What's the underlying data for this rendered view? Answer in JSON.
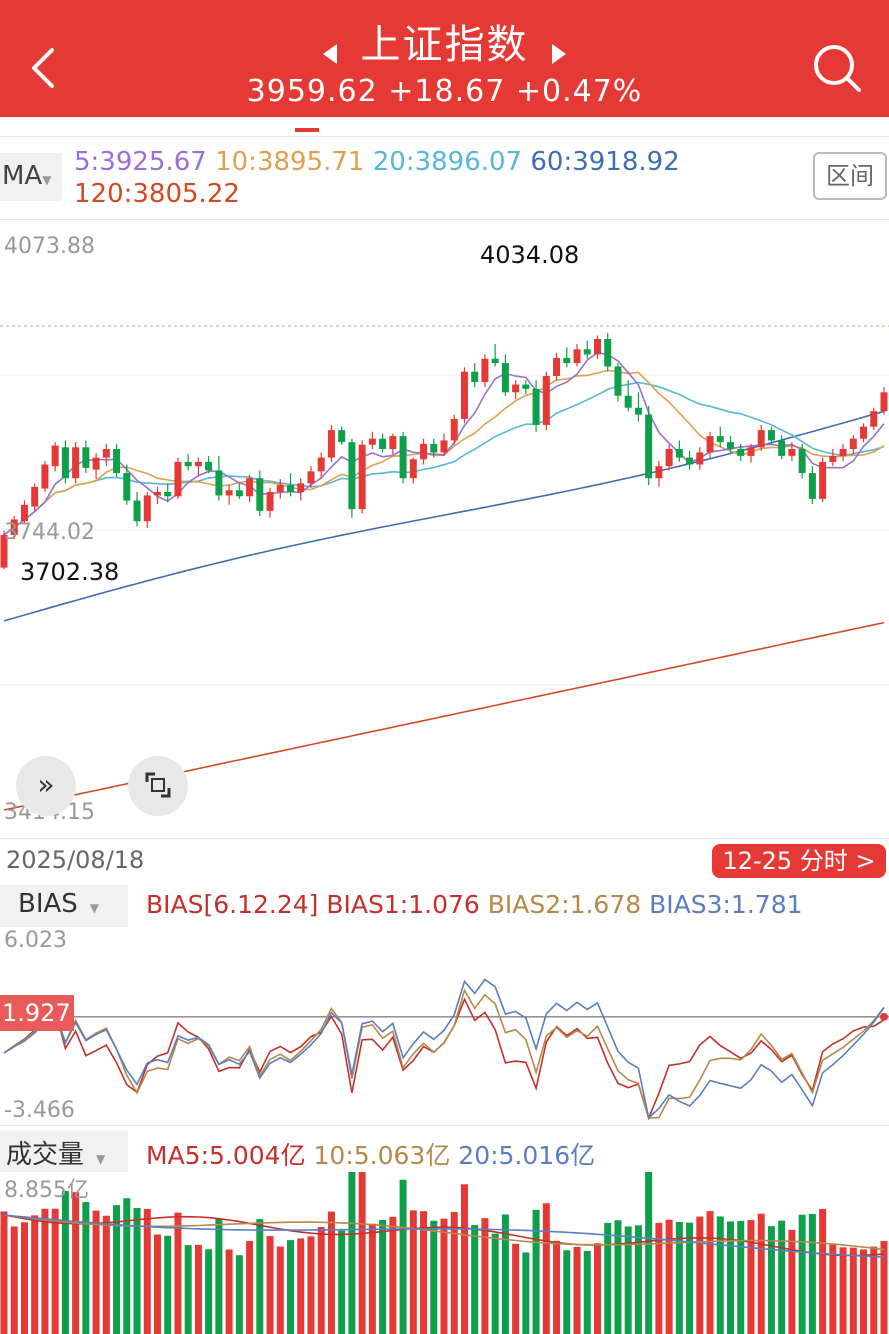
{
  "header": {
    "title": "上证指数",
    "price": "3959.62",
    "change": "+18.67",
    "change_pct": "+0.47%"
  },
  "ma_bar": {
    "selector_label": "MA",
    "ma5": "5:3925.67",
    "ma10": "10:3895.71",
    "ma20": "20:3896.07",
    "ma60": "60:3918.92",
    "ma120": "120:3805.22",
    "range_label": "区间"
  },
  "main_chart": {
    "y_high": "4073.88",
    "y_mid": "3744.02",
    "y_low": "3414.15",
    "max_label": "4034.08",
    "min_label": "3702.38",
    "expand_icon": "double-chevron-right-icon",
    "fullscreen_icon": "square-corner-icon"
  },
  "date_bar": {
    "date": "2025/08/18",
    "intraday_link": "12-25 分时 >"
  },
  "bias": {
    "selector_label": "BIAS",
    "params": "BIAS[6.12.24]",
    "bias1": "BIAS1:1.076",
    "bias2": "BIAS2:1.678",
    "bias3": "BIAS3:1.781",
    "y_top": "6.023",
    "y_bottom": "-3.466",
    "current_tag": "1.927"
  },
  "volume": {
    "selector_label": "成交量",
    "ma5": "MA5:5.004亿",
    "ma10": "10:5.063亿",
    "ma20": "20:5.016亿",
    "y_top": "8.855亿"
  },
  "colors": {
    "up": "#e53935",
    "down": "#0e9f4a",
    "ma5": "#9b6fd6",
    "ma10": "#e0a050",
    "ma20": "#55b8d6",
    "ma60": "#3d6fb2",
    "ma120": "#d24a22",
    "bias1": "#c4302b",
    "bias2": "#b5894a",
    "bias3": "#5a7fbf"
  },
  "chart_data": {
    "type": "candlestick",
    "title": "上证指数",
    "y_ticks": [
      4073.88,
      3744.02,
      3414.15
    ],
    "ylim": [
      3414.15,
      4073.88
    ],
    "max": 4034.08,
    "min": 3702.38,
    "candles_ohlc": [
      [
        3702,
        3745,
        3700,
        3740
      ],
      [
        3740,
        3762,
        3735,
        3758
      ],
      [
        3756,
        3780,
        3752,
        3775
      ],
      [
        3773,
        3800,
        3768,
        3796
      ],
      [
        3794,
        3826,
        3790,
        3822
      ],
      [
        3820,
        3848,
        3814,
        3844
      ],
      [
        3842,
        3850,
        3800,
        3806
      ],
      [
        3806,
        3848,
        3800,
        3842
      ],
      [
        3842,
        3850,
        3812,
        3818
      ],
      [
        3816,
        3835,
        3805,
        3830
      ],
      [
        3830,
        3846,
        3820,
        3840
      ],
      [
        3840,
        3846,
        3808,
        3812
      ],
      [
        3812,
        3822,
        3775,
        3780
      ],
      [
        3780,
        3790,
        3750,
        3756
      ],
      [
        3756,
        3790,
        3748,
        3786
      ],
      [
        3786,
        3796,
        3776,
        3790
      ],
      [
        3790,
        3800,
        3778,
        3785
      ],
      [
        3785,
        3830,
        3782,
        3825
      ],
      [
        3825,
        3834,
        3815,
        3820
      ],
      [
        3820,
        3830,
        3808,
        3825
      ],
      [
        3825,
        3832,
        3812,
        3815
      ],
      [
        3815,
        3832,
        3780,
        3786
      ],
      [
        3786,
        3798,
        3775,
        3792
      ],
      [
        3792,
        3800,
        3782,
        3785
      ],
      [
        3785,
        3810,
        3778,
        3806
      ],
      [
        3806,
        3815,
        3762,
        3768
      ],
      [
        3768,
        3795,
        3760,
        3790
      ],
      [
        3790,
        3805,
        3782,
        3798
      ],
      [
        3798,
        3812,
        3785,
        3790
      ],
      [
        3790,
        3806,
        3780,
        3800
      ],
      [
        3800,
        3820,
        3795,
        3814
      ],
      [
        3814,
        3836,
        3805,
        3830
      ],
      [
        3830,
        3868,
        3825,
        3862
      ],
      [
        3862,
        3866,
        3845,
        3848
      ],
      [
        3848,
        3852,
        3760,
        3770
      ],
      [
        3770,
        3850,
        3765,
        3845
      ],
      [
        3845,
        3860,
        3840,
        3852
      ],
      [
        3852,
        3858,
        3836,
        3840
      ],
      [
        3840,
        3858,
        3834,
        3855
      ],
      [
        3855,
        3860,
        3800,
        3806
      ],
      [
        3806,
        3830,
        3800,
        3828
      ],
      [
        3828,
        3852,
        3822,
        3846
      ],
      [
        3846,
        3852,
        3830,
        3836
      ],
      [
        3836,
        3858,
        3832,
        3850
      ],
      [
        3850,
        3880,
        3845,
        3875
      ],
      [
        3875,
        3935,
        3870,
        3930
      ],
      [
        3930,
        3940,
        3912,
        3918
      ],
      [
        3918,
        3950,
        3912,
        3945
      ],
      [
        3945,
        3962,
        3936,
        3940
      ],
      [
        3940,
        3950,
        3902,
        3906
      ],
      [
        3906,
        3920,
        3898,
        3915
      ],
      [
        3915,
        3920,
        3904,
        3910
      ],
      [
        3910,
        3920,
        3860,
        3868
      ],
      [
        3868,
        3930,
        3862,
        3925
      ],
      [
        3925,
        3952,
        3920,
        3946
      ],
      [
        3946,
        3958,
        3935,
        3940
      ],
      [
        3940,
        3962,
        3936,
        3956
      ],
      [
        3956,
        3966,
        3945,
        3950
      ],
      [
        3950,
        3972,
        3945,
        3968
      ],
      [
        3968,
        3975,
        3930,
        3936
      ],
      [
        3936,
        3940,
        3895,
        3902
      ],
      [
        3902,
        3920,
        3884,
        3888
      ],
      [
        3888,
        3906,
        3872,
        3880
      ],
      [
        3880,
        3890,
        3798,
        3806
      ],
      [
        3806,
        3826,
        3796,
        3820
      ],
      [
        3820,
        3845,
        3815,
        3840
      ],
      [
        3840,
        3850,
        3825,
        3830
      ],
      [
        3830,
        3838,
        3816,
        3822
      ],
      [
        3822,
        3842,
        3816,
        3836
      ],
      [
        3836,
        3860,
        3830,
        3855
      ],
      [
        3855,
        3866,
        3842,
        3848
      ],
      [
        3848,
        3855,
        3836,
        3840
      ],
      [
        3840,
        3846,
        3826,
        3832
      ],
      [
        3832,
        3846,
        3824,
        3842
      ],
      [
        3842,
        3868,
        3838,
        3862
      ],
      [
        3862,
        3866,
        3846,
        3850
      ],
      [
        3850,
        3856,
        3828,
        3832
      ],
      [
        3832,
        3848,
        3826,
        3840
      ],
      [
        3840,
        3846,
        3806,
        3812
      ],
      [
        3812,
        3820,
        3776,
        3782
      ],
      [
        3782,
        3830,
        3778,
        3825
      ],
      [
        3825,
        3840,
        3820,
        3832
      ],
      [
        3832,
        3846,
        3826,
        3840
      ],
      [
        3840,
        3856,
        3834,
        3852
      ],
      [
        3852,
        3870,
        3848,
        3866
      ],
      [
        3866,
        3888,
        3862,
        3884
      ],
      [
        3884,
        3912,
        3880,
        3906
      ]
    ],
    "ma_series": [
      {
        "name": "MA5",
        "last": 3925.67
      },
      {
        "name": "MA10",
        "last": 3895.71
      },
      {
        "name": "MA20",
        "last": 3896.07
      },
      {
        "name": "MA60",
        "last": 3918.92
      },
      {
        "name": "MA120",
        "last": 3805.22
      }
    ],
    "bias_series": [
      {
        "name": "BIAS1",
        "last": 1.076
      },
      {
        "name": "BIAS2",
        "last": 1.678
      },
      {
        "name": "BIAS3",
        "last": 1.781
      }
    ],
    "bias_ylim": [
      -3.466,
      6.023
    ],
    "volume_ylim_top": 8.855
  }
}
